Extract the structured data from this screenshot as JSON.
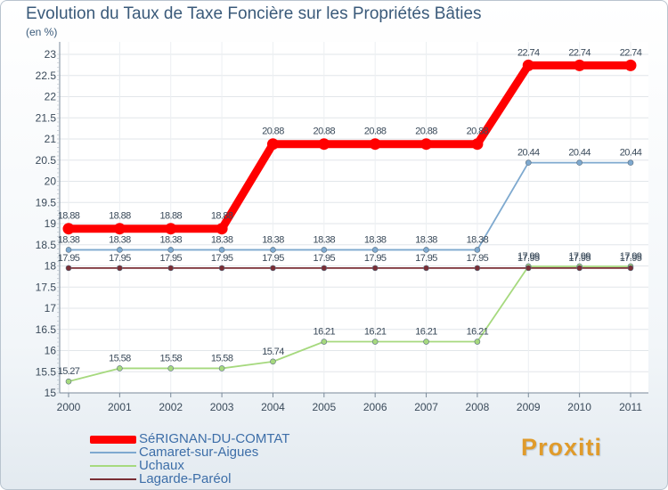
{
  "header": {
    "title": "Evolution du Taux de Taxe Foncière sur les Propriétés Bâties",
    "unit": "(en %)"
  },
  "logo": {
    "text": "Proxiti"
  },
  "chart_data": {
    "type": "line",
    "title": "Evolution du Taux de Taxe Foncière sur les Propriétés Bâties",
    "ylabel": "(en %)",
    "xlabel": "",
    "x": [
      "2000",
      "2001",
      "2002",
      "2003",
      "2004",
      "2005",
      "2006",
      "2007",
      "2008",
      "2009",
      "2010",
      "2011"
    ],
    "ylim": [
      15,
      23
    ],
    "yticks": [
      15,
      15.5,
      16,
      16.5,
      17,
      17.5,
      18,
      18.5,
      19,
      19.5,
      20,
      20.5,
      21,
      21.5,
      22,
      22.5,
      23
    ],
    "grid": true,
    "legend_position": "bottom-left",
    "series": [
      {
        "name": "SéRIGNAN-DU-COMTAT",
        "color": "#ff0000",
        "emphasis": true,
        "values": [
          18.88,
          18.88,
          18.88,
          18.88,
          20.88,
          20.88,
          20.88,
          20.88,
          20.88,
          22.74,
          22.74,
          22.74
        ],
        "labels": [
          "18.88",
          "18.88",
          "18.88",
          "18.88",
          "20.88",
          "20.88",
          "20.88",
          "20.88",
          "20.88",
          "22.74",
          "22.74",
          "22.74"
        ]
      },
      {
        "name": "Camaret-sur-Aigues",
        "color": "#7ea9cf",
        "values": [
          18.38,
          18.38,
          18.38,
          18.38,
          18.38,
          18.38,
          18.38,
          18.38,
          18.38,
          20.44,
          20.44,
          20.44
        ],
        "labels": [
          "18.38",
          "18.38",
          "18.38",
          "18.38",
          "18.38",
          "18.38",
          "18.38",
          "18.38",
          "18.38",
          "20.44",
          "20.44",
          "20.44"
        ]
      },
      {
        "name": "Uchaux",
        "color": "#a6d97e",
        "values": [
          15.27,
          15.58,
          15.58,
          15.58,
          15.74,
          16.21,
          16.21,
          16.21,
          16.21,
          17.99,
          17.99,
          17.99
        ],
        "labels": [
          "15.27",
          "15.58",
          "15.58",
          "15.58",
          "15.74",
          "16.21",
          "16.21",
          "16.21",
          "16.21",
          "17.99",
          "17.99",
          "17.99"
        ]
      },
      {
        "name": "Lagarde-Paréol",
        "color": "#7a2e35",
        "values": [
          17.95,
          17.95,
          17.95,
          17.95,
          17.95,
          17.95,
          17.95,
          17.95,
          17.95,
          17.95,
          17.95,
          17.95
        ],
        "labels": [
          "17.95",
          "17.95",
          "17.95",
          "17.95",
          "17.95",
          "17.95",
          "17.95",
          "17.95",
          "17.95",
          "17.95",
          "17.95",
          "17.95"
        ]
      }
    ]
  }
}
